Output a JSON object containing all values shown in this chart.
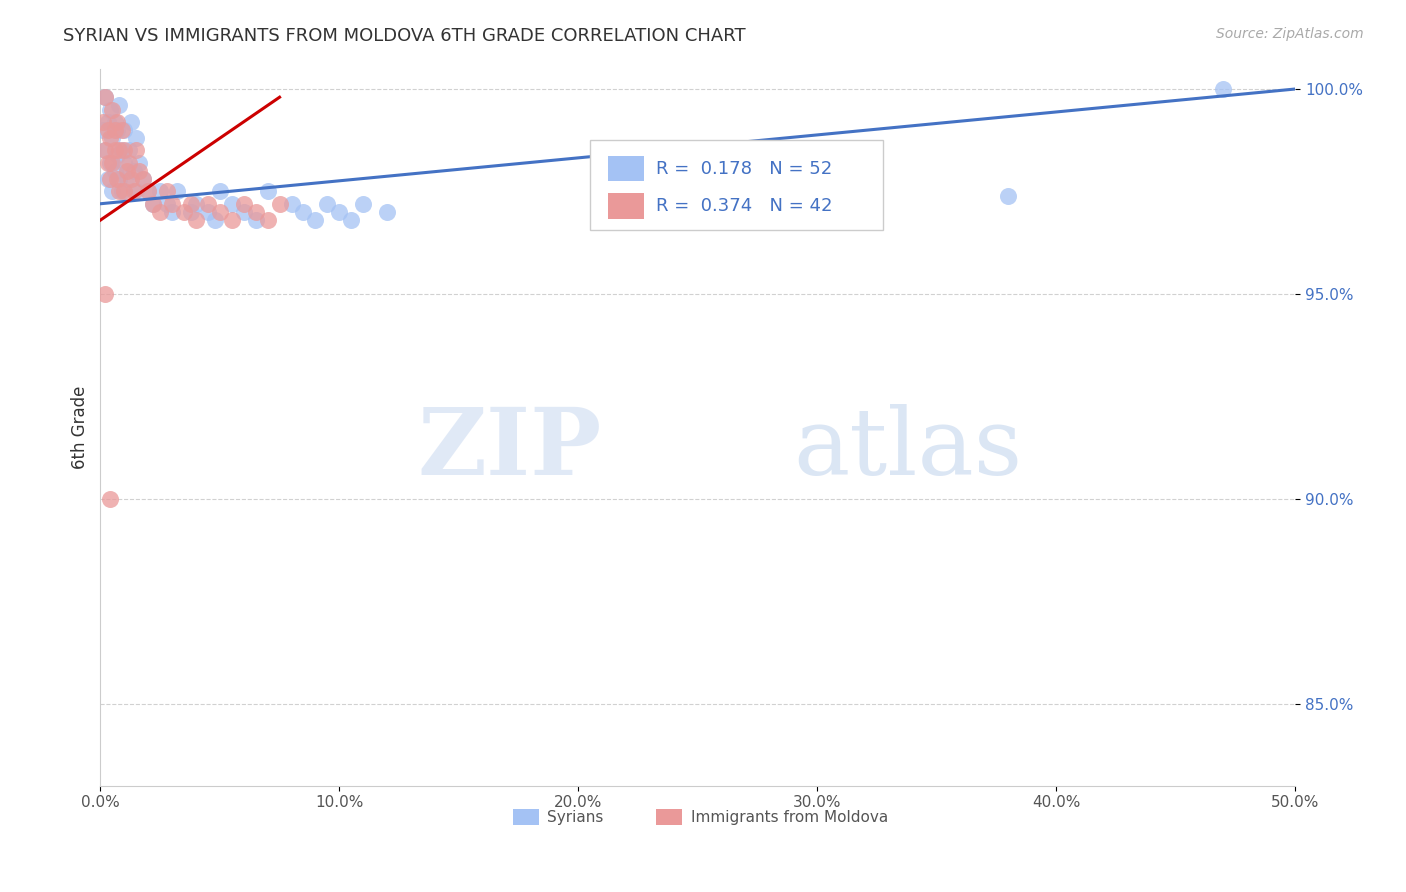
{
  "title": "SYRIAN VS IMMIGRANTS FROM MOLDOVA 6TH GRADE CORRELATION CHART",
  "source_text": "Source: ZipAtlas.com",
  "ylabel": "6th Grade",
  "xmin": 0.0,
  "xmax": 0.5,
  "ymin": 0.83,
  "ymax": 1.005,
  "xtick_labels": [
    "0.0%",
    "10.0%",
    "20.0%",
    "30.0%",
    "40.0%",
    "50.0%"
  ],
  "xtick_values": [
    0.0,
    0.1,
    0.2,
    0.3,
    0.4,
    0.5
  ],
  "ytick_labels": [
    "85.0%",
    "90.0%",
    "95.0%",
    "100.0%"
  ],
  "ytick_values": [
    0.85,
    0.9,
    0.95,
    1.0
  ],
  "watermark_zip": "ZIP",
  "watermark_atlas": "atlas",
  "legend_r1": "R =  0.178",
  "legend_n1": "N = 52",
  "legend_r2": "R =  0.374",
  "legend_n2": "N = 42",
  "color_blue": "#a4c2f4",
  "color_pink": "#ea9999",
  "line_blue": "#4472c4",
  "line_pink": "#cc0000",
  "syrians_x": [
    0.001,
    0.002,
    0.002,
    0.003,
    0.003,
    0.004,
    0.004,
    0.005,
    0.005,
    0.006,
    0.006,
    0.007,
    0.007,
    0.008,
    0.008,
    0.009,
    0.009,
    0.01,
    0.01,
    0.011,
    0.012,
    0.013,
    0.014,
    0.015,
    0.015,
    0.016,
    0.018,
    0.02,
    0.022,
    0.025,
    0.028,
    0.03,
    0.032,
    0.038,
    0.04,
    0.045,
    0.048,
    0.05,
    0.055,
    0.06,
    0.065,
    0.07,
    0.08,
    0.085,
    0.09,
    0.095,
    0.1,
    0.105,
    0.11,
    0.12,
    0.38,
    0.47
  ],
  "syrians_y": [
    0.99,
    0.998,
    0.985,
    0.992,
    0.978,
    0.995,
    0.982,
    0.988,
    0.975,
    0.992,
    0.98,
    0.99,
    0.984,
    0.996,
    0.978,
    0.985,
    0.975,
    0.99,
    0.982,
    0.978,
    0.985,
    0.992,
    0.98,
    0.988,
    0.975,
    0.982,
    0.978,
    0.975,
    0.972,
    0.975,
    0.972,
    0.97,
    0.975,
    0.97,
    0.972,
    0.97,
    0.968,
    0.975,
    0.972,
    0.97,
    0.968,
    0.975,
    0.972,
    0.97,
    0.968,
    0.972,
    0.97,
    0.968,
    0.972,
    0.97,
    0.974,
    1.0
  ],
  "moldova_x": [
    0.001,
    0.002,
    0.002,
    0.003,
    0.003,
    0.004,
    0.004,
    0.005,
    0.005,
    0.006,
    0.006,
    0.007,
    0.007,
    0.008,
    0.008,
    0.009,
    0.01,
    0.01,
    0.011,
    0.012,
    0.013,
    0.014,
    0.015,
    0.016,
    0.018,
    0.02,
    0.022,
    0.025,
    0.028,
    0.03,
    0.035,
    0.038,
    0.04,
    0.045,
    0.05,
    0.055,
    0.06,
    0.065,
    0.07,
    0.075,
    0.002,
    0.004
  ],
  "moldova_y": [
    0.992,
    0.985,
    0.998,
    0.982,
    0.99,
    0.988,
    0.978,
    0.995,
    0.982,
    0.99,
    0.985,
    0.978,
    0.992,
    0.985,
    0.975,
    0.99,
    0.985,
    0.975,
    0.98,
    0.982,
    0.978,
    0.975,
    0.985,
    0.98,
    0.978,
    0.975,
    0.972,
    0.97,
    0.975,
    0.972,
    0.97,
    0.972,
    0.968,
    0.972,
    0.97,
    0.968,
    0.972,
    0.97,
    0.968,
    0.972,
    0.95,
    0.9
  ],
  "blue_line_x0": 0.0,
  "blue_line_x1": 0.5,
  "blue_line_y0": 0.972,
  "blue_line_y1": 1.0,
  "pink_line_x0": 0.0,
  "pink_line_x1": 0.075,
  "pink_line_y0": 0.968,
  "pink_line_y1": 0.998
}
